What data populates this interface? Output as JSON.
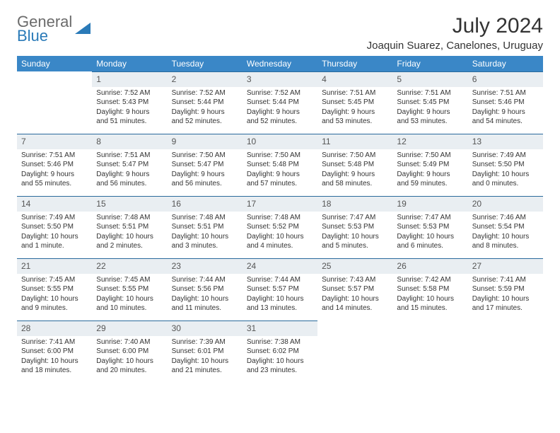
{
  "logo": {
    "line1": "General",
    "line2": "Blue"
  },
  "title": "July 2024",
  "location": "Joaquin Suarez, Canelones, Uruguay",
  "colors": {
    "header_bg": "#3a87c7",
    "header_text": "#ffffff",
    "daynum_bg": "#e9eef2",
    "daynum_border": "#2a6a9c",
    "logo_gray": "#6b6b6b",
    "logo_blue": "#2a7ab8",
    "body_text": "#333333",
    "page_bg": "#ffffff"
  },
  "daysOfWeek": [
    "Sunday",
    "Monday",
    "Tuesday",
    "Wednesday",
    "Thursday",
    "Friday",
    "Saturday"
  ],
  "weeks": [
    [
      {
        "empty": true
      },
      {
        "num": "1",
        "sunrise": "Sunrise: 7:52 AM",
        "sunset": "Sunset: 5:43 PM",
        "daylight": "Daylight: 9 hours and 51 minutes."
      },
      {
        "num": "2",
        "sunrise": "Sunrise: 7:52 AM",
        "sunset": "Sunset: 5:44 PM",
        "daylight": "Daylight: 9 hours and 52 minutes."
      },
      {
        "num": "3",
        "sunrise": "Sunrise: 7:52 AM",
        "sunset": "Sunset: 5:44 PM",
        "daylight": "Daylight: 9 hours and 52 minutes."
      },
      {
        "num": "4",
        "sunrise": "Sunrise: 7:51 AM",
        "sunset": "Sunset: 5:45 PM",
        "daylight": "Daylight: 9 hours and 53 minutes."
      },
      {
        "num": "5",
        "sunrise": "Sunrise: 7:51 AM",
        "sunset": "Sunset: 5:45 PM",
        "daylight": "Daylight: 9 hours and 53 minutes."
      },
      {
        "num": "6",
        "sunrise": "Sunrise: 7:51 AM",
        "sunset": "Sunset: 5:46 PM",
        "daylight": "Daylight: 9 hours and 54 minutes."
      }
    ],
    [
      {
        "num": "7",
        "sunrise": "Sunrise: 7:51 AM",
        "sunset": "Sunset: 5:46 PM",
        "daylight": "Daylight: 9 hours and 55 minutes."
      },
      {
        "num": "8",
        "sunrise": "Sunrise: 7:51 AM",
        "sunset": "Sunset: 5:47 PM",
        "daylight": "Daylight: 9 hours and 56 minutes."
      },
      {
        "num": "9",
        "sunrise": "Sunrise: 7:50 AM",
        "sunset": "Sunset: 5:47 PM",
        "daylight": "Daylight: 9 hours and 56 minutes."
      },
      {
        "num": "10",
        "sunrise": "Sunrise: 7:50 AM",
        "sunset": "Sunset: 5:48 PM",
        "daylight": "Daylight: 9 hours and 57 minutes."
      },
      {
        "num": "11",
        "sunrise": "Sunrise: 7:50 AM",
        "sunset": "Sunset: 5:48 PM",
        "daylight": "Daylight: 9 hours and 58 minutes."
      },
      {
        "num": "12",
        "sunrise": "Sunrise: 7:50 AM",
        "sunset": "Sunset: 5:49 PM",
        "daylight": "Daylight: 9 hours and 59 minutes."
      },
      {
        "num": "13",
        "sunrise": "Sunrise: 7:49 AM",
        "sunset": "Sunset: 5:50 PM",
        "daylight": "Daylight: 10 hours and 0 minutes."
      }
    ],
    [
      {
        "num": "14",
        "sunrise": "Sunrise: 7:49 AM",
        "sunset": "Sunset: 5:50 PM",
        "daylight": "Daylight: 10 hours and 1 minute."
      },
      {
        "num": "15",
        "sunrise": "Sunrise: 7:48 AM",
        "sunset": "Sunset: 5:51 PM",
        "daylight": "Daylight: 10 hours and 2 minutes."
      },
      {
        "num": "16",
        "sunrise": "Sunrise: 7:48 AM",
        "sunset": "Sunset: 5:51 PM",
        "daylight": "Daylight: 10 hours and 3 minutes."
      },
      {
        "num": "17",
        "sunrise": "Sunrise: 7:48 AM",
        "sunset": "Sunset: 5:52 PM",
        "daylight": "Daylight: 10 hours and 4 minutes."
      },
      {
        "num": "18",
        "sunrise": "Sunrise: 7:47 AM",
        "sunset": "Sunset: 5:53 PM",
        "daylight": "Daylight: 10 hours and 5 minutes."
      },
      {
        "num": "19",
        "sunrise": "Sunrise: 7:47 AM",
        "sunset": "Sunset: 5:53 PM",
        "daylight": "Daylight: 10 hours and 6 minutes."
      },
      {
        "num": "20",
        "sunrise": "Sunrise: 7:46 AM",
        "sunset": "Sunset: 5:54 PM",
        "daylight": "Daylight: 10 hours and 8 minutes."
      }
    ],
    [
      {
        "num": "21",
        "sunrise": "Sunrise: 7:45 AM",
        "sunset": "Sunset: 5:55 PM",
        "daylight": "Daylight: 10 hours and 9 minutes."
      },
      {
        "num": "22",
        "sunrise": "Sunrise: 7:45 AM",
        "sunset": "Sunset: 5:55 PM",
        "daylight": "Daylight: 10 hours and 10 minutes."
      },
      {
        "num": "23",
        "sunrise": "Sunrise: 7:44 AM",
        "sunset": "Sunset: 5:56 PM",
        "daylight": "Daylight: 10 hours and 11 minutes."
      },
      {
        "num": "24",
        "sunrise": "Sunrise: 7:44 AM",
        "sunset": "Sunset: 5:57 PM",
        "daylight": "Daylight: 10 hours and 13 minutes."
      },
      {
        "num": "25",
        "sunrise": "Sunrise: 7:43 AM",
        "sunset": "Sunset: 5:57 PM",
        "daylight": "Daylight: 10 hours and 14 minutes."
      },
      {
        "num": "26",
        "sunrise": "Sunrise: 7:42 AM",
        "sunset": "Sunset: 5:58 PM",
        "daylight": "Daylight: 10 hours and 15 minutes."
      },
      {
        "num": "27",
        "sunrise": "Sunrise: 7:41 AM",
        "sunset": "Sunset: 5:59 PM",
        "daylight": "Daylight: 10 hours and 17 minutes."
      }
    ],
    [
      {
        "num": "28",
        "sunrise": "Sunrise: 7:41 AM",
        "sunset": "Sunset: 6:00 PM",
        "daylight": "Daylight: 10 hours and 18 minutes."
      },
      {
        "num": "29",
        "sunrise": "Sunrise: 7:40 AM",
        "sunset": "Sunset: 6:00 PM",
        "daylight": "Daylight: 10 hours and 20 minutes."
      },
      {
        "num": "30",
        "sunrise": "Sunrise: 7:39 AM",
        "sunset": "Sunset: 6:01 PM",
        "daylight": "Daylight: 10 hours and 21 minutes."
      },
      {
        "num": "31",
        "sunrise": "Sunrise: 7:38 AM",
        "sunset": "Sunset: 6:02 PM",
        "daylight": "Daylight: 10 hours and 23 minutes."
      },
      {
        "empty": true
      },
      {
        "empty": true
      },
      {
        "empty": true
      }
    ]
  ]
}
